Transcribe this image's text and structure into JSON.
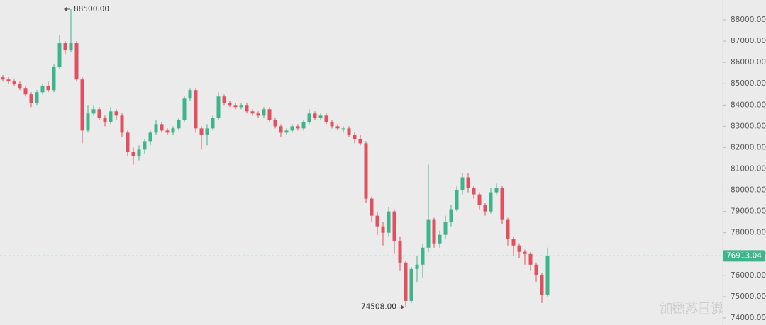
{
  "chart_data": {
    "type": "candlestick",
    "up_color": "#3db48c",
    "down_color": "#e0505e",
    "ylim": [
      73667,
      88931
    ],
    "yticks": [
      {
        "value": 74000,
        "label": "74000.00"
      },
      {
        "value": 75000,
        "label": "75000.00"
      },
      {
        "value": 76000,
        "label": "76000.00"
      },
      {
        "value": 77000,
        "label": "77000.00"
      },
      {
        "value": 78000,
        "label": "78000.00"
      },
      {
        "value": 79000,
        "label": "79000.00"
      },
      {
        "value": 80000,
        "label": "80000.00"
      },
      {
        "value": 81000,
        "label": "81000.00"
      },
      {
        "value": 82000,
        "label": "82000.00"
      },
      {
        "value": 83000,
        "label": "83000.00"
      },
      {
        "value": 84000,
        "label": "84000.00"
      },
      {
        "value": 85000,
        "label": "85000.00"
      },
      {
        "value": 86000,
        "label": "86000.00"
      },
      {
        "value": 87000,
        "label": "87000.00"
      },
      {
        "value": 88000,
        "label": "88000.00"
      }
    ],
    "series": {
      "open": [
        85300,
        85200,
        85100,
        85000,
        84800,
        84500,
        84100,
        84600,
        84900,
        84700,
        85800,
        86900,
        86600,
        86900,
        85200,
        82800,
        83600,
        83800,
        83400,
        83200,
        83700,
        83500,
        82700,
        81800,
        81600,
        81900,
        82300,
        82700,
        83100,
        82800,
        82700,
        82900,
        83300,
        84300,
        84700,
        82900,
        82600,
        82900,
        83400,
        84400,
        84100,
        84000,
        83900,
        84000,
        83700,
        83600,
        83500,
        83800,
        83300,
        83000,
        82700,
        82800,
        83000,
        82900,
        83200,
        83600,
        83400,
        83500,
        83200,
        83000,
        82900,
        82900,
        82600,
        82400,
        82200,
        79600,
        78800,
        78300,
        78000,
        79000,
        77600,
        76600,
        74800,
        76300,
        76500,
        77300,
        78600,
        77500,
        77900,
        78500,
        79100,
        80000,
        80600,
        80100,
        79800,
        79300,
        79000,
        79900,
        80100,
        78600,
        77700,
        77400,
        77100,
        77000,
        76500,
        76000,
        75100
      ],
      "high": [
        85400,
        85300,
        85200,
        85100,
        84900,
        84600,
        84700,
        85000,
        85100,
        85900,
        87300,
        87000,
        88500,
        87000,
        85300,
        84000,
        84000,
        83900,
        83500,
        83900,
        83800,
        83600,
        82800,
        82000,
        82100,
        82400,
        82800,
        83300,
        83200,
        82900,
        83000,
        83400,
        84400,
        84800,
        84800,
        83000,
        83100,
        83500,
        84600,
        84500,
        84200,
        84100,
        84100,
        84100,
        83800,
        83700,
        83900,
        83900,
        83400,
        83100,
        82900,
        83100,
        83100,
        83300,
        83800,
        83700,
        83600,
        83600,
        83300,
        83100,
        83000,
        83000,
        82700,
        82600,
        82300,
        79700,
        79000,
        78500,
        79200,
        79100,
        77800,
        76700,
        76400,
        76900,
        77500,
        81200,
        78700,
        78100,
        78800,
        79300,
        80200,
        80800,
        80800,
        80200,
        79900,
        79400,
        80100,
        80300,
        80200,
        78700,
        77800,
        77500,
        77200,
        77100,
        76600,
        76100,
        77300
      ],
      "low": [
        85100,
        85000,
        84900,
        84700,
        84400,
        83900,
        84000,
        84500,
        84600,
        84600,
        85700,
        86400,
        86500,
        85100,
        82200,
        82700,
        83500,
        83300,
        83000,
        83100,
        83300,
        82500,
        81600,
        81200,
        81400,
        81700,
        82100,
        82600,
        82700,
        82600,
        82600,
        82800,
        83200,
        84200,
        82700,
        81900,
        82100,
        82800,
        83300,
        84000,
        83900,
        83800,
        83800,
        83600,
        83500,
        83400,
        83400,
        83200,
        82900,
        82500,
        82600,
        82700,
        82800,
        82800,
        83100,
        83300,
        83300,
        83100,
        82900,
        82800,
        82700,
        82500,
        82200,
        82100,
        79400,
        78500,
        77900,
        77400,
        77800,
        77000,
        76200,
        74508,
        74700,
        75700,
        75900,
        77100,
        77300,
        77300,
        77700,
        78300,
        79000,
        79800,
        79900,
        79600,
        79100,
        78800,
        78900,
        79800,
        78400,
        77400,
        76900,
        76800,
        76500,
        76200,
        75700,
        74700,
        75000
      ],
      "close": [
        85200,
        85100,
        85000,
        84800,
        84500,
        84100,
        84600,
        84900,
        84700,
        85800,
        86900,
        86600,
        86900,
        85200,
        82800,
        83600,
        83800,
        83400,
        83200,
        83700,
        83500,
        82700,
        81800,
        81600,
        81900,
        82300,
        82700,
        83100,
        82800,
        82700,
        82900,
        83300,
        84300,
        84700,
        82900,
        82600,
        82900,
        83400,
        84400,
        84100,
        84000,
        83900,
        84000,
        83700,
        83600,
        83500,
        83800,
        83300,
        83000,
        82700,
        82800,
        83000,
        82900,
        83200,
        83600,
        83400,
        83500,
        83200,
        83000,
        82900,
        82900,
        82600,
        82400,
        82200,
        79600,
        78800,
        78300,
        78000,
        79000,
        77600,
        76600,
        74800,
        76300,
        76500,
        77300,
        78600,
        77500,
        77900,
        78500,
        79100,
        80000,
        80600,
        80100,
        79800,
        79300,
        79000,
        79900,
        80100,
        78600,
        77700,
        77400,
        77100,
        77000,
        76500,
        76000,
        75100,
        76913.04
      ]
    },
    "max_marker": {
      "value": 88500,
      "label": "88500.00"
    },
    "min_marker": {
      "value": 74508,
      "label": "74508.00"
    },
    "last_price": {
      "value": 76913.04,
      "label": "76913.04"
    },
    "watermark": "加密苏日说"
  }
}
